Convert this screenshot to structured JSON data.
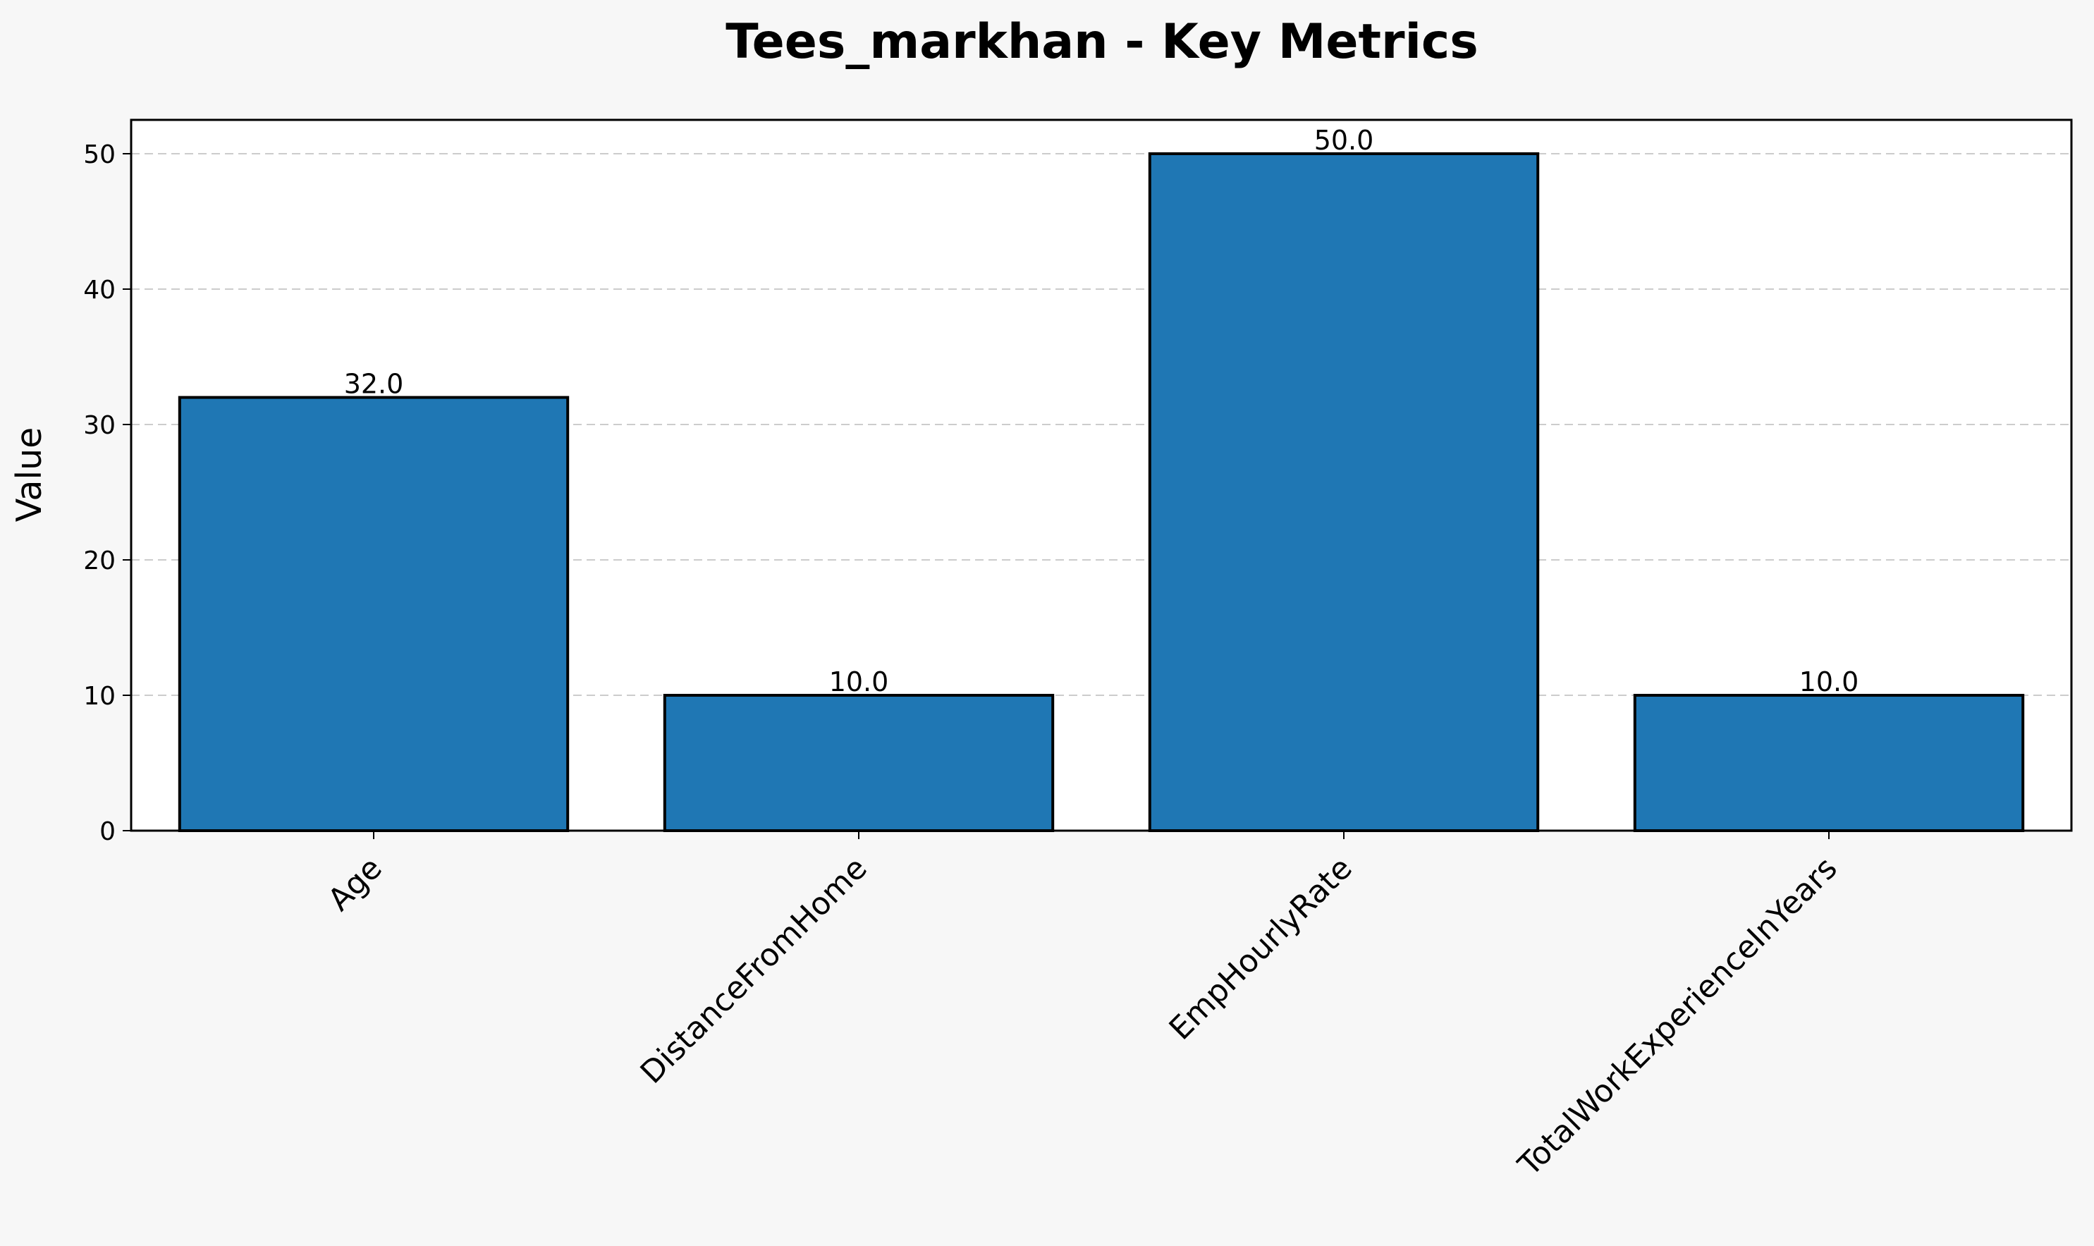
{
  "chart_data": {
    "type": "bar",
    "title": "Tees_markhan - Key Metrics",
    "xlabel": "",
    "ylabel": "Value",
    "categories": [
      "Age",
      "DistanceFromHome",
      "EmpHourlyRate",
      "TotalWorkExperienceInYears"
    ],
    "values": [
      32.0,
      10.0,
      50.0,
      10.0
    ],
    "value_labels": [
      "32.0",
      "10.0",
      "50.0",
      "10.0"
    ],
    "y_ticks": [
      0,
      10,
      20,
      30,
      40,
      50
    ],
    "ylim": [
      0,
      52.5
    ],
    "grid": "y-dashed",
    "legend": "none",
    "x_tick_rotation_deg": 45
  },
  "colors": {
    "bar_fill": "#1f77b4",
    "bar_edge": "#000000",
    "grid": "#cccccc",
    "plot_background": "#ffffff",
    "figure_background": "#f7f7f7"
  }
}
